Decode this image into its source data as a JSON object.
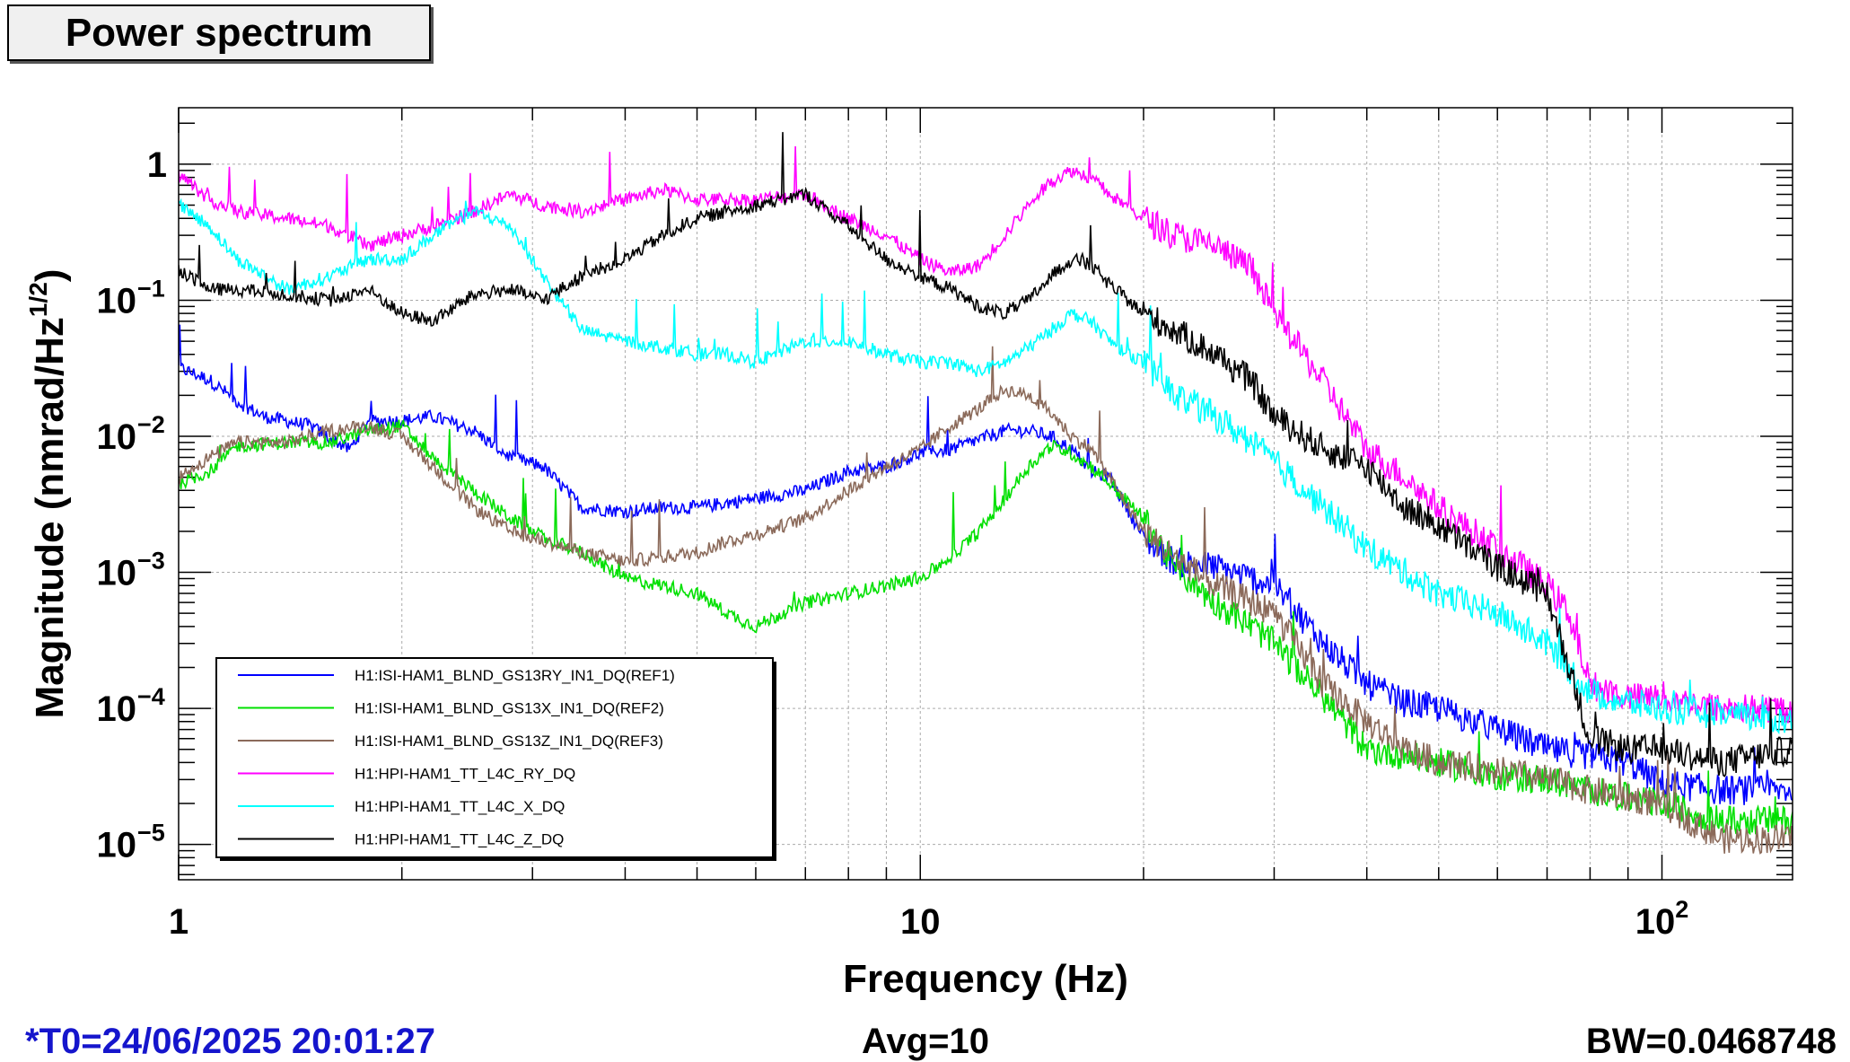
{
  "title": "Power spectrum",
  "footer": {
    "t0": "*T0=24/06/2025 20:01:27",
    "avg": "Avg=10",
    "bw": "BW=0.0468748"
  },
  "chart_data": {
    "type": "line",
    "title": "Power spectrum",
    "xlabel": "Frequency (Hz)",
    "ylabel_main": "Magnitude (nmrad/Hz",
    "ylabel_sup": "1/2",
    "ylabel_close": ")",
    "x_scale": "log",
    "y_scale": "log",
    "xlim": [
      1,
      150
    ],
    "ylim": [
      5.5e-06,
      2.6
    ],
    "grid": true,
    "legend_position": "bottom-left",
    "x_ticks": [
      {
        "value": 1,
        "label": "1"
      },
      {
        "value": 10,
        "label": "10"
      },
      {
        "value": 100,
        "label": "10",
        "sup": "2"
      }
    ],
    "y_ticks": [
      {
        "value": 1,
        "label": "1",
        "sup": ""
      },
      {
        "value": 0.1,
        "label": "10",
        "sup": "−1"
      },
      {
        "value": 0.01,
        "label": "10",
        "sup": "−2"
      },
      {
        "value": 0.001,
        "label": "10",
        "sup": "−3"
      },
      {
        "value": 0.0001,
        "label": "10",
        "sup": "−4"
      },
      {
        "value": 1e-05,
        "label": "10",
        "sup": "−5"
      }
    ],
    "series": [
      {
        "name": "H1:ISI-HAM1_BLND_GS13RY_IN1_DQ(REF1)",
        "color": "#0000ff",
        "x": [
          1,
          1.1,
          1.2,
          1.3,
          1.5,
          1.7,
          1.8,
          2,
          2.2,
          2.5,
          2.8,
          3.1,
          3.5,
          4,
          4.5,
          5,
          6,
          7,
          8,
          9,
          10,
          11,
          12,
          13,
          14,
          15,
          16,
          17,
          18,
          20,
          22,
          25,
          28,
          30,
          35,
          40,
          45,
          50,
          60,
          70,
          80,
          90,
          100,
          120,
          150
        ],
        "y": [
          0.032,
          0.026,
          0.018,
          0.014,
          0.012,
          0.008,
          0.013,
          0.013,
          0.014,
          0.011,
          0.007,
          0.006,
          0.003,
          0.0028,
          0.003,
          0.003,
          0.0035,
          0.004,
          0.0055,
          0.006,
          0.0075,
          0.008,
          0.0095,
          0.011,
          0.011,
          0.01,
          0.008,
          0.0055,
          0.005,
          0.0018,
          0.0012,
          0.0011,
          0.0009,
          0.0008,
          0.0003,
          0.00015,
          0.00011,
          0.0001,
          7e-05,
          5e-05,
          4.5e-05,
          4e-05,
          2.8e-05,
          2.5e-05,
          2.5e-05
        ]
      },
      {
        "name": "H1:ISI-HAM1_BLND_GS13X_IN1_DQ(REF2)",
        "color": "#00e000",
        "x": [
          1,
          1.1,
          1.2,
          1.4,
          1.6,
          1.8,
          2,
          2.2,
          2.5,
          2.8,
          3.1,
          3.5,
          4,
          4.5,
          5,
          5.5,
          6,
          7,
          8,
          9,
          10,
          11,
          12,
          13,
          14,
          15,
          16,
          17,
          18,
          20,
          22,
          25,
          28,
          30,
          35,
          40,
          45,
          50,
          60,
          70,
          80,
          90,
          100,
          120,
          150
        ],
        "y": [
          0.0045,
          0.0055,
          0.0085,
          0.009,
          0.009,
          0.011,
          0.012,
          0.007,
          0.004,
          0.0025,
          0.0018,
          0.0014,
          0.0009,
          0.0008,
          0.0007,
          0.0005,
          0.0004,
          0.0006,
          0.0007,
          0.0008,
          0.0009,
          0.0013,
          0.002,
          0.0035,
          0.006,
          0.0085,
          0.0075,
          0.006,
          0.0045,
          0.0025,
          0.0011,
          0.0006,
          0.0004,
          0.0003,
          0.00012,
          5e-05,
          4.5e-05,
          4e-05,
          3.2e-05,
          3e-05,
          2.5e-05,
          2.2e-05,
          2e-05,
          1.5e-05,
          1.5e-05
        ]
      },
      {
        "name": "H1:ISI-HAM1_BLND_GS13Z_IN1_DQ(REF3)",
        "color": "#8b6a5a",
        "x": [
          1,
          1.1,
          1.2,
          1.4,
          1.6,
          1.8,
          2,
          2.2,
          2.5,
          2.8,
          3.1,
          3.5,
          4,
          4.5,
          5,
          5.5,
          6,
          7,
          8,
          9,
          10,
          11,
          12,
          13,
          14,
          15,
          16,
          17,
          18,
          20,
          22,
          25,
          28,
          30,
          35,
          40,
          45,
          50,
          60,
          70,
          80,
          90,
          100,
          120,
          150
        ],
        "y": [
          0.005,
          0.007,
          0.009,
          0.009,
          0.011,
          0.012,
          0.01,
          0.006,
          0.003,
          0.002,
          0.0017,
          0.0014,
          0.0012,
          0.0013,
          0.0014,
          0.0017,
          0.0019,
          0.0025,
          0.004,
          0.006,
          0.008,
          0.012,
          0.016,
          0.022,
          0.02,
          0.015,
          0.01,
          0.008,
          0.005,
          0.002,
          0.0013,
          0.0008,
          0.0006,
          0.0005,
          0.00015,
          8e-05,
          5e-05,
          4e-05,
          3.5e-05,
          3e-05,
          2.5e-05,
          2.2e-05,
          2e-05,
          1.1e-05,
          1.1e-05
        ]
      },
      {
        "name": "H1:HPI-HAM1_TT_L4C_RY_DQ",
        "color": "#ff00ff",
        "x": [
          1,
          1.1,
          1.2,
          1.4,
          1.6,
          1.8,
          2,
          2.2,
          2.5,
          2.8,
          3.1,
          3.5,
          4,
          4.5,
          5,
          5.5,
          6,
          7,
          8,
          9,
          10,
          11,
          12,
          13,
          14,
          15,
          16,
          17,
          18,
          20,
          22,
          25,
          28,
          30,
          35,
          40,
          45,
          50,
          60,
          70,
          75,
          80,
          90,
          100,
          120,
          150
        ],
        "y": [
          0.85,
          0.55,
          0.45,
          0.4,
          0.35,
          0.25,
          0.3,
          0.35,
          0.45,
          0.6,
          0.5,
          0.45,
          0.55,
          0.65,
          0.55,
          0.55,
          0.55,
          0.6,
          0.4,
          0.3,
          0.2,
          0.16,
          0.18,
          0.3,
          0.5,
          0.75,
          0.9,
          0.8,
          0.6,
          0.4,
          0.3,
          0.25,
          0.17,
          0.08,
          0.025,
          0.008,
          0.005,
          0.003,
          0.0015,
          0.0008,
          0.0005,
          0.00015,
          0.00012,
          0.00012,
          0.0001,
          0.0001
        ]
      },
      {
        "name": "H1:HPI-HAM1_TT_L4C_X_DQ",
        "color": "#00ffff",
        "x": [
          1,
          1.1,
          1.2,
          1.4,
          1.6,
          1.8,
          2,
          2.2,
          2.5,
          2.8,
          3.1,
          3.5,
          4,
          4.5,
          5,
          5.5,
          6,
          7,
          8,
          9,
          10,
          11,
          12,
          13,
          14,
          15,
          16,
          17,
          18,
          20,
          22,
          25,
          28,
          30,
          35,
          40,
          45,
          50,
          60,
          70,
          80,
          90,
          100,
          120,
          150
        ],
        "y": [
          0.5,
          0.35,
          0.2,
          0.12,
          0.15,
          0.2,
          0.2,
          0.3,
          0.45,
          0.35,
          0.15,
          0.06,
          0.05,
          0.045,
          0.04,
          0.04,
          0.035,
          0.05,
          0.05,
          0.04,
          0.035,
          0.035,
          0.03,
          0.035,
          0.045,
          0.06,
          0.08,
          0.07,
          0.05,
          0.035,
          0.02,
          0.014,
          0.009,
          0.0065,
          0.003,
          0.0015,
          0.001,
          0.0007,
          0.0005,
          0.0003,
          0.00013,
          0.00011,
          0.0001,
          9e-05,
          8e-05
        ]
      },
      {
        "name": "H1:HPI-HAM1_TT_L4C_Z_DQ",
        "color": "#000000",
        "x": [
          1,
          1.1,
          1.2,
          1.4,
          1.6,
          1.8,
          2,
          2.2,
          2.5,
          2.8,
          3.1,
          3.5,
          4,
          4.5,
          5,
          5.5,
          6,
          7,
          8,
          9,
          10,
          11,
          12,
          13,
          14,
          15,
          16,
          17,
          18,
          20,
          22,
          25,
          28,
          30,
          35,
          40,
          45,
          50,
          60,
          70,
          80,
          90,
          100,
          120,
          150
        ],
        "y": [
          0.17,
          0.12,
          0.12,
          0.11,
          0.1,
          0.12,
          0.08,
          0.07,
          0.11,
          0.12,
          0.1,
          0.15,
          0.2,
          0.3,
          0.4,
          0.45,
          0.5,
          0.6,
          0.35,
          0.2,
          0.15,
          0.12,
          0.09,
          0.08,
          0.1,
          0.15,
          0.2,
          0.18,
          0.13,
          0.08,
          0.06,
          0.04,
          0.025,
          0.014,
          0.008,
          0.006,
          0.003,
          0.0022,
          0.0011,
          0.0007,
          6e-05,
          5e-05,
          5e-05,
          4e-05,
          5e-05
        ]
      }
    ]
  }
}
